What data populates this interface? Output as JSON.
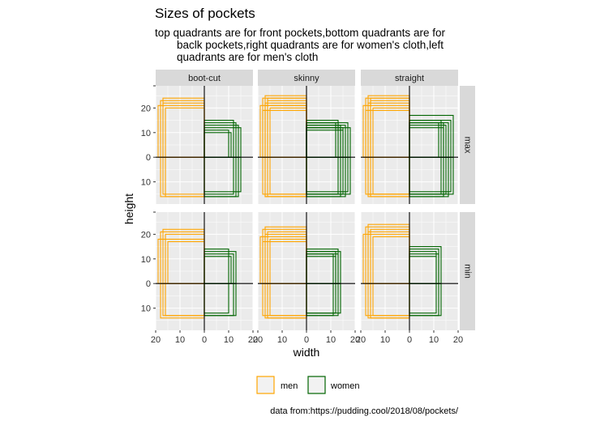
{
  "chart_data": {
    "type": "facet-rectangles",
    "title": "Sizes of pockets",
    "subtitle_lines": [
      "top quadrants are for front pockets,bottom quadrants are for",
      "baclk pockets,right quadrants are for women's cloth,left",
      "quadrants are for men's cloth"
    ],
    "xlabel": "width",
    "ylabel": "height",
    "caption": "data from:https://pudding.cool/2018/08/pockets/",
    "columns": [
      "boot-cut",
      "skinny",
      "straight"
    ],
    "rows": [
      "max",
      "min"
    ],
    "xlim": [
      -20,
      20
    ],
    "ylim": [
      -19,
      29
    ],
    "x_tick_values": [
      -20,
      -10,
      0,
      10,
      20
    ],
    "x_tick_labels": [
      "20",
      "10",
      "0",
      "10",
      "20"
    ],
    "y_tick_values": [
      -10,
      0,
      10,
      20
    ],
    "y_tick_labels": [
      "10",
      "0",
      "10",
      "20"
    ],
    "legend": [
      {
        "label": "men",
        "color": "#FFA500"
      },
      {
        "label": "women",
        "color": "#006400"
      }
    ],
    "colors": {
      "men": "#FFA500",
      "women": "#006400",
      "panel": "#EBEBEB",
      "grid": "#FFFFFF",
      "strip": "#D9D9D9"
    },
    "panels": [
      {
        "column": "boot-cut",
        "row": "max",
        "men_front": [
          [
            17,
            24
          ],
          [
            18,
            23
          ],
          [
            17,
            22
          ],
          [
            19,
            21
          ],
          [
            16,
            20
          ]
        ],
        "men_back": [
          [
            17,
            15
          ],
          [
            18,
            16
          ],
          [
            16,
            16
          ]
        ],
        "women_front": [
          [
            12,
            15
          ],
          [
            13,
            14
          ],
          [
            14,
            13
          ],
          [
            15,
            12
          ],
          [
            10,
            11
          ],
          [
            11,
            10
          ]
        ],
        "women_back": [
          [
            12,
            15
          ],
          [
            13,
            16
          ],
          [
            14,
            16
          ],
          [
            15,
            14
          ]
        ]
      },
      {
        "column": "skinny",
        "row": "max",
        "men_front": [
          [
            17,
            25
          ],
          [
            18,
            24
          ],
          [
            16,
            23
          ],
          [
            17,
            22
          ],
          [
            19,
            21
          ],
          [
            15,
            20
          ],
          [
            18,
            19
          ],
          [
            16,
            24
          ],
          [
            17,
            21
          ]
        ],
        "men_back": [
          [
            17,
            16
          ],
          [
            18,
            15
          ],
          [
            16,
            16
          ],
          [
            15,
            15
          ],
          [
            17,
            16
          ]
        ],
        "women_front": [
          [
            12,
            14
          ],
          [
            14,
            13
          ],
          [
            15,
            12
          ],
          [
            13,
            14
          ],
          [
            16,
            13
          ],
          [
            18,
            12
          ],
          [
            13,
            15
          ],
          [
            14,
            12
          ],
          [
            15,
            11
          ],
          [
            17,
            14
          ]
        ],
        "women_back": [
          [
            13,
            15
          ],
          [
            14,
            16
          ],
          [
            15,
            15
          ],
          [
            16,
            16
          ],
          [
            17,
            14
          ],
          [
            18,
            15
          ]
        ]
      },
      {
        "column": "straight",
        "row": "max",
        "men_front": [
          [
            17,
            25
          ],
          [
            18,
            24
          ],
          [
            16,
            23
          ],
          [
            17,
            22
          ],
          [
            19,
            21
          ],
          [
            15,
            20
          ],
          [
            18,
            19
          ],
          [
            16,
            24
          ]
        ],
        "men_back": [
          [
            17,
            16
          ],
          [
            18,
            15
          ],
          [
            16,
            16
          ],
          [
            15,
            15
          ],
          [
            17,
            15
          ]
        ],
        "women_front": [
          [
            13,
            15
          ],
          [
            14,
            14
          ],
          [
            15,
            13
          ],
          [
            16,
            14
          ],
          [
            17,
            15
          ],
          [
            18,
            17
          ],
          [
            12,
            14
          ],
          [
            14,
            12
          ]
        ],
        "women_back": [
          [
            13,
            15
          ],
          [
            14,
            16
          ],
          [
            15,
            15
          ],
          [
            16,
            16
          ],
          [
            17,
            14
          ],
          [
            18,
            15
          ]
        ]
      },
      {
        "column": "boot-cut",
        "row": "min",
        "men_front": [
          [
            17,
            22
          ],
          [
            18,
            21
          ],
          [
            16,
            20
          ],
          [
            19,
            18
          ],
          [
            15,
            17
          ]
        ],
        "men_back": [
          [
            17,
            13
          ],
          [
            18,
            14
          ],
          [
            16,
            13
          ]
        ],
        "women_front": [
          [
            10,
            14
          ],
          [
            12,
            12
          ],
          [
            13,
            13
          ],
          [
            11,
            11
          ]
        ],
        "women_back": [
          [
            10,
            12
          ],
          [
            13,
            13
          ],
          [
            12,
            13
          ]
        ]
      },
      {
        "column": "skinny",
        "row": "min",
        "men_front": [
          [
            17,
            23
          ],
          [
            18,
            22
          ],
          [
            16,
            21
          ],
          [
            17,
            20
          ],
          [
            19,
            19
          ],
          [
            15,
            18
          ],
          [
            18,
            17
          ]
        ],
        "men_back": [
          [
            17,
            14
          ],
          [
            18,
            13
          ],
          [
            16,
            14
          ],
          [
            15,
            13
          ]
        ],
        "women_front": [
          [
            11,
            12
          ],
          [
            12,
            13
          ],
          [
            13,
            14
          ],
          [
            14,
            13
          ],
          [
            12,
            11
          ],
          [
            13,
            12
          ]
        ],
        "women_back": [
          [
            12,
            12
          ],
          [
            13,
            13
          ],
          [
            14,
            12
          ],
          [
            11,
            13
          ]
        ]
      },
      {
        "column": "straight",
        "row": "min",
        "men_front": [
          [
            17,
            24
          ],
          [
            18,
            23
          ],
          [
            16,
            22
          ],
          [
            17,
            21
          ],
          [
            19,
            20
          ],
          [
            15,
            19
          ]
        ],
        "men_back": [
          [
            17,
            14
          ],
          [
            18,
            13
          ],
          [
            16,
            14
          ],
          [
            15,
            13
          ]
        ],
        "women_front": [
          [
            11,
            13
          ],
          [
            12,
            14
          ],
          [
            13,
            15
          ],
          [
            12,
            12
          ],
          [
            11,
            11
          ]
        ],
        "women_back": [
          [
            11,
            12
          ],
          [
            12,
            13
          ],
          [
            13,
            13
          ]
        ]
      }
    ]
  }
}
